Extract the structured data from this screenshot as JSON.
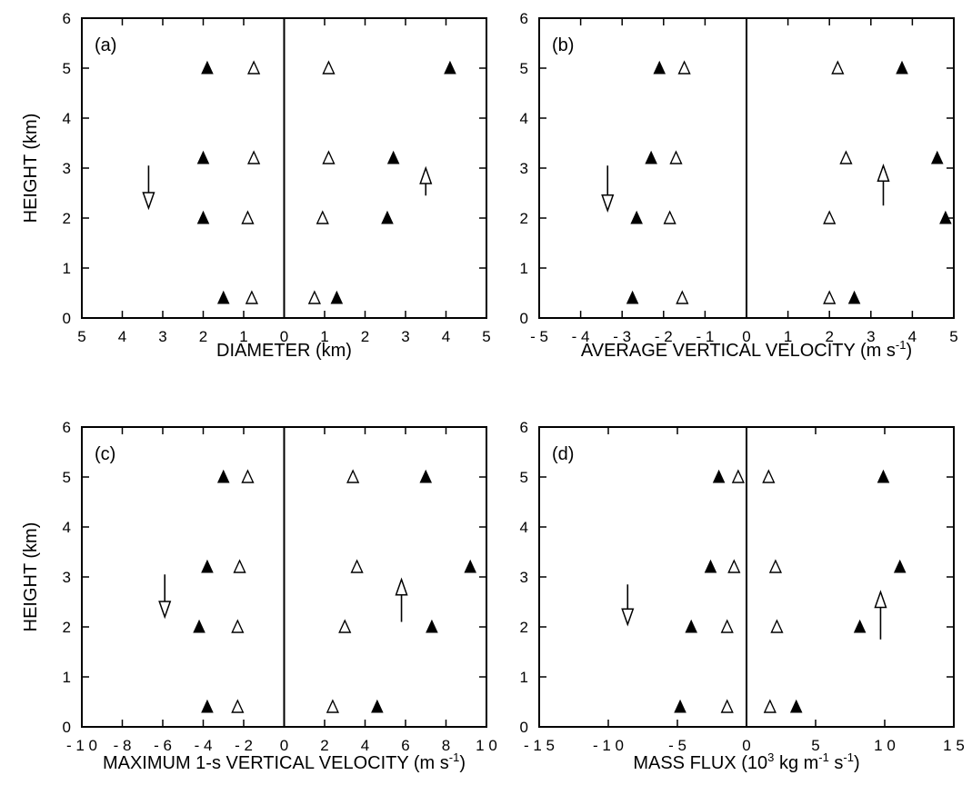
{
  "chart_data": [
    {
      "panel": "(a)",
      "type": "scatter",
      "xlabel": "DIAMETER (km)",
      "ylabel": "HEIGHT (km)",
      "xlim": [
        -5,
        5
      ],
      "ylim": [
        0,
        6
      ],
      "x_tick_values": [
        -5,
        -4,
        -3,
        -2,
        -1,
        0,
        1,
        2,
        3,
        4,
        5
      ],
      "x_tick_labels": [
        "5",
        "4",
        "3",
        "2",
        "1",
        "0",
        "1",
        "2",
        "3",
        "4",
        "5"
      ],
      "y_ticks": [
        0,
        1,
        2,
        3,
        4,
        5,
        6
      ],
      "series": [
        {
          "marker": "filled-triangle",
          "points": [
            [
              -1.9,
              5.0
            ],
            [
              -2.0,
              3.2
            ],
            [
              -2.0,
              2.0
            ],
            [
              -1.5,
              0.4
            ],
            [
              4.1,
              5.0
            ],
            [
              2.7,
              3.2
            ],
            [
              2.55,
              2.0
            ],
            [
              1.3,
              0.4
            ]
          ]
        },
        {
          "marker": "open-triangle",
          "points": [
            [
              -0.75,
              5.0
            ],
            [
              -0.75,
              3.2
            ],
            [
              -0.9,
              2.0
            ],
            [
              -0.8,
              0.4
            ],
            [
              1.1,
              5.0
            ],
            [
              1.1,
              3.2
            ],
            [
              0.95,
              2.0
            ],
            [
              0.75,
              0.4
            ]
          ]
        }
      ],
      "arrows": [
        {
          "direction": "down",
          "x": -3.35,
          "y_from": 3.05,
          "y_to": 2.2
        },
        {
          "direction": "up",
          "x": 3.5,
          "y_from": 2.45,
          "y_to": 3.0
        }
      ]
    },
    {
      "panel": "(b)",
      "type": "scatter",
      "xlabel": "AVERAGE VERTICAL VELOCITY (m s",
      "xlabel_sup": "-1",
      "xlabel_end": ")",
      "ylabel": "",
      "xlim": [
        -5,
        5
      ],
      "ylim": [
        0,
        6
      ],
      "x_tick_values": [
        -5,
        -4,
        -3,
        -2,
        -1,
        0,
        1,
        2,
        3,
        4,
        5
      ],
      "x_tick_labels": [
        "- 5",
        "- 4",
        "- 3",
        "- 2",
        "- 1",
        "0",
        "1",
        "2",
        "3",
        "4",
        "5"
      ],
      "y_ticks": [
        0,
        1,
        2,
        3,
        4,
        5,
        6
      ],
      "series": [
        {
          "marker": "filled-triangle",
          "points": [
            [
              -2.1,
              5.0
            ],
            [
              -2.3,
              3.2
            ],
            [
              -2.65,
              2.0
            ],
            [
              -2.75,
              0.4
            ],
            [
              3.75,
              5.0
            ],
            [
              4.6,
              3.2
            ],
            [
              4.8,
              2.0
            ],
            [
              2.6,
              0.4
            ]
          ]
        },
        {
          "marker": "open-triangle",
          "points": [
            [
              -1.5,
              5.0
            ],
            [
              -1.7,
              3.2
            ],
            [
              -1.85,
              2.0
            ],
            [
              -1.55,
              0.4
            ],
            [
              2.2,
              5.0
            ],
            [
              2.4,
              3.2
            ],
            [
              2.0,
              2.0
            ],
            [
              2.0,
              0.4
            ]
          ]
        }
      ],
      "arrows": [
        {
          "direction": "down",
          "x": -3.35,
          "y_from": 3.05,
          "y_to": 2.15
        },
        {
          "direction": "up",
          "x": 3.3,
          "y_from": 2.25,
          "y_to": 3.05
        }
      ]
    },
    {
      "panel": "(c)",
      "type": "scatter",
      "xlabel": "MAXIMUM 1-s VERTICAL VELOCITY (m s",
      "xlabel_sup": "-1",
      "xlabel_end": ")",
      "ylabel": "HEIGHT (km)",
      "xlim": [
        -10,
        10
      ],
      "ylim": [
        0,
        6
      ],
      "x_tick_values": [
        -10,
        -8,
        -6,
        -4,
        -2,
        0,
        2,
        4,
        6,
        8,
        10
      ],
      "x_tick_labels": [
        "- 1 0",
        "- 8",
        "- 6",
        "- 4",
        "- 2",
        "0",
        "2",
        "4",
        "6",
        "8",
        "1 0"
      ],
      "y_ticks": [
        0,
        1,
        2,
        3,
        4,
        5,
        6
      ],
      "series": [
        {
          "marker": "filled-triangle",
          "points": [
            [
              -3.0,
              5.0
            ],
            [
              -3.8,
              3.2
            ],
            [
              -4.2,
              2.0
            ],
            [
              -3.8,
              0.4
            ],
            [
              7.0,
              5.0
            ],
            [
              9.2,
              3.2
            ],
            [
              7.3,
              2.0
            ],
            [
              4.6,
              0.4
            ]
          ]
        },
        {
          "marker": "open-triangle",
          "points": [
            [
              -1.8,
              5.0
            ],
            [
              -2.2,
              3.2
            ],
            [
              -2.3,
              2.0
            ],
            [
              -2.3,
              0.4
            ],
            [
              3.4,
              5.0
            ],
            [
              3.6,
              3.2
            ],
            [
              3.0,
              2.0
            ],
            [
              2.4,
              0.4
            ]
          ]
        }
      ],
      "arrows": [
        {
          "direction": "down",
          "x": -5.9,
          "y_from": 3.05,
          "y_to": 2.2
        },
        {
          "direction": "up",
          "x": 5.8,
          "y_from": 2.1,
          "y_to": 2.95
        }
      ]
    },
    {
      "panel": "(d)",
      "type": "scatter",
      "xlabel": "MASS FLUX  (10",
      "xlabel_parts": [
        {
          "text": "MASS FLUX  (10"
        },
        {
          "text": "3",
          "sup": true
        },
        {
          "text": " kg m"
        },
        {
          "text": "-1",
          "sup": true
        },
        {
          "text": " s"
        },
        {
          "text": "-1",
          "sup": true
        },
        {
          "text": ")"
        }
      ],
      "ylabel": "",
      "xlim": [
        -15,
        15
      ],
      "ylim": [
        0,
        6
      ],
      "x_tick_values": [
        -15,
        -10,
        -5,
        0,
        5,
        10,
        15
      ],
      "x_tick_labels": [
        "- 1 5",
        "- 1 0",
        "- 5",
        "0",
        "5",
        "1 0",
        "1 5"
      ],
      "y_ticks": [
        0,
        1,
        2,
        3,
        4,
        5,
        6
      ],
      "series": [
        {
          "marker": "filled-triangle",
          "points": [
            [
              -2.0,
              5.0
            ],
            [
              -2.6,
              3.2
            ],
            [
              -4.0,
              2.0
            ],
            [
              -4.8,
              0.4
            ],
            [
              9.9,
              5.0
            ],
            [
              11.1,
              3.2
            ],
            [
              8.2,
              2.0
            ],
            [
              3.6,
              0.4
            ]
          ]
        },
        {
          "marker": "open-triangle",
          "points": [
            [
              -0.6,
              5.0
            ],
            [
              -0.9,
              3.2
            ],
            [
              -1.4,
              2.0
            ],
            [
              -1.4,
              0.4
            ],
            [
              1.6,
              5.0
            ],
            [
              2.1,
              3.2
            ],
            [
              2.2,
              2.0
            ],
            [
              1.7,
              0.4
            ]
          ]
        }
      ],
      "arrows": [
        {
          "direction": "down",
          "x": -8.6,
          "y_from": 2.85,
          "y_to": 2.05
        },
        {
          "direction": "up",
          "x": 9.7,
          "y_from": 1.75,
          "y_to": 2.7
        }
      ]
    }
  ]
}
